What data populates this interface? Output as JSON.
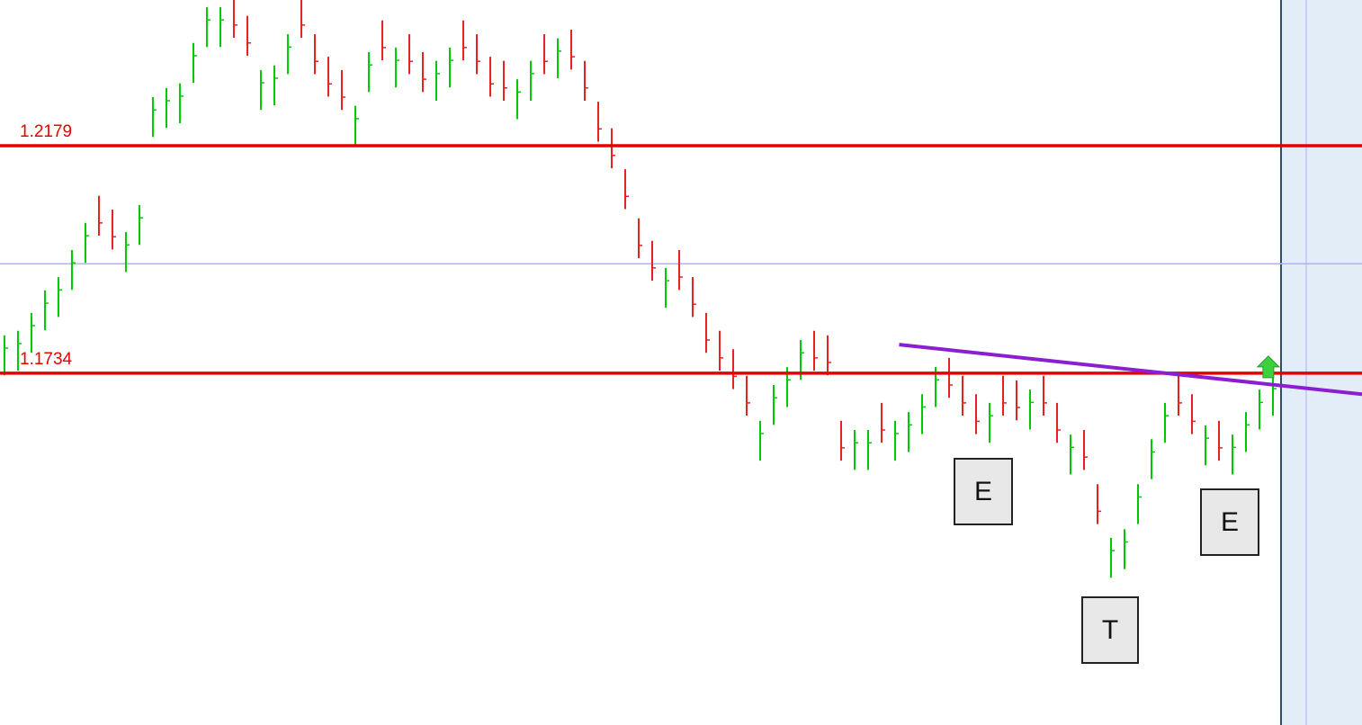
{
  "chart_data": {
    "type": "ohlc",
    "series": {
      "up_color": "#00c800",
      "down_color": "#e62020",
      "high": [
        1.1808,
        1.1817,
        1.1852,
        1.1896,
        1.1922,
        1.1975,
        1.2028,
        1.2081,
        1.2054,
        1.201,
        1.2063,
        1.2274,
        1.2292,
        1.2301,
        1.238,
        1.245,
        1.245,
        1.2468,
        1.2433,
        1.2327,
        1.2336,
        1.2397,
        1.2468,
        1.2397,
        1.2353,
        1.2327,
        1.2257,
        1.2362,
        1.2424,
        1.2371,
        1.2397,
        1.2362,
        1.2345,
        1.2371,
        1.2424,
        1.2397,
        1.2353,
        1.2345,
        1.2309,
        1.2345,
        1.2397,
        1.2389,
        1.2406,
        1.2345,
        1.2265,
        1.2213,
        1.2133,
        1.2037,
        1.1993,
        1.194,
        1.1975,
        1.1922,
        1.1852,
        1.1817,
        1.1781,
        1.1729,
        1.1641,
        1.1711,
        1.1746,
        1.1799,
        1.1817,
        1.1808,
        1.1641,
        1.1623,
        1.1623,
        1.1676,
        1.1641,
        1.1658,
        1.1693,
        1.1746,
        1.1764,
        1.1729,
        1.1693,
        1.1676,
        1.1729,
        1.172,
        1.1702,
        1.1729,
        1.1676,
        1.1614,
        1.1623,
        1.1517,
        1.1412,
        1.1429,
        1.1517,
        1.1605,
        1.1676,
        1.1729,
        1.1693,
        1.1632,
        1.1641,
        1.1614,
        1.1658,
        1.1702,
        1.1729
      ],
      "low": [
        1.173,
        1.1739,
        1.1774,
        1.1818,
        1.1844,
        1.1897,
        1.195,
        1.2003,
        1.1976,
        1.1932,
        1.1985,
        1.2196,
        1.2214,
        1.2223,
        1.2302,
        1.2372,
        1.2372,
        1.239,
        1.2355,
        1.2249,
        1.2258,
        1.2319,
        1.239,
        1.2319,
        1.2275,
        1.2249,
        1.2179,
        1.2284,
        1.2346,
        1.2293,
        1.2319,
        1.2284,
        1.2267,
        1.2293,
        1.2346,
        1.2319,
        1.2275,
        1.2267,
        1.2231,
        1.2267,
        1.2319,
        1.2311,
        1.2328,
        1.2267,
        1.2187,
        1.2135,
        1.2055,
        1.1959,
        1.1915,
        1.1862,
        1.1897,
        1.1844,
        1.1774,
        1.1739,
        1.1703,
        1.1651,
        1.1563,
        1.1633,
        1.1668,
        1.1721,
        1.1739,
        1.173,
        1.1563,
        1.1545,
        1.1545,
        1.1598,
        1.1563,
        1.158,
        1.1615,
        1.1668,
        1.1686,
        1.1651,
        1.1615,
        1.1598,
        1.1651,
        1.1642,
        1.1624,
        1.1651,
        1.1598,
        1.1536,
        1.1545,
        1.1439,
        1.1334,
        1.1351,
        1.1439,
        1.1527,
        1.1598,
        1.1651,
        1.1615,
        1.1554,
        1.1563,
        1.1536,
        1.158,
        1.1624,
        1.1651
      ],
      "close": [
        1.1783,
        1.1792,
        1.1827,
        1.1871,
        1.1897,
        1.195,
        1.2003,
        1.2028,
        1.2001,
        1.1985,
        1.2038,
        1.2249,
        1.2267,
        1.2276,
        1.2355,
        1.2425,
        1.2425,
        1.2415,
        1.238,
        1.2302,
        1.2311,
        1.2372,
        1.2415,
        1.2344,
        1.23,
        1.2274,
        1.2232,
        1.2337,
        1.2371,
        1.2346,
        1.2344,
        1.2309,
        1.232,
        1.2346,
        1.2371,
        1.2344,
        1.23,
        1.2292,
        1.2284,
        1.232,
        1.2344,
        1.2364,
        1.2353,
        1.2292,
        1.2212,
        1.216,
        1.208,
        1.1984,
        1.194,
        1.1915,
        1.1922,
        1.1869,
        1.1799,
        1.1764,
        1.1728,
        1.1676,
        1.1616,
        1.1686,
        1.1721,
        1.1774,
        1.1764,
        1.1755,
        1.1588,
        1.1598,
        1.1598,
        1.1623,
        1.1616,
        1.1633,
        1.1668,
        1.1721,
        1.1711,
        1.1676,
        1.164,
        1.1651,
        1.1676,
        1.1667,
        1.1677,
        1.1676,
        1.1623,
        1.1589,
        1.157,
        1.1464,
        1.1387,
        1.1404,
        1.1492,
        1.158,
        1.1651,
        1.1676,
        1.164,
        1.1607,
        1.1588,
        1.1589,
        1.1633,
        1.1677,
        1.1704
      ]
    },
    "xlim": [
      -0.33,
      100.6
    ],
    "ylim": [
      1.1046,
      1.2464
    ],
    "levels": [
      {
        "value": 1.2179,
        "color": "#e60000"
      },
      {
        "value": 1.1734,
        "color": "#e60000"
      }
    ],
    "guide_lines": [
      {
        "value": 1.1948,
        "color": "#b0b0ff"
      }
    ],
    "trendline": {
      "x": [
        66.3,
        100.6
      ],
      "values": [
        1.179,
        1.1693
      ],
      "color": "#8a1ed0"
    },
    "signal": {
      "x": 93.66,
      "value": 1.1743,
      "color": "#3cd03c"
    }
  },
  "annotations": [
    "E",
    "T",
    "E"
  ]
}
